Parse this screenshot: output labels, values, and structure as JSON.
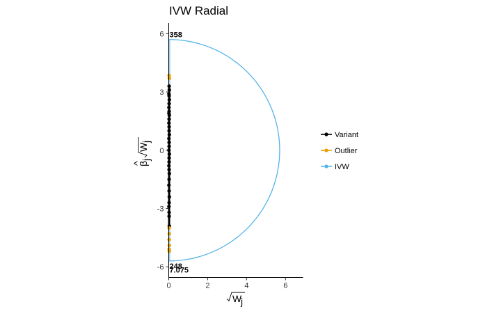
{
  "chart_data": {
    "type": "scatter",
    "title": "IVW Radial",
    "xlabel_base": "W",
    "xlabel_sub": "j",
    "ylabel_base": "β",
    "ylabel_hat": "^",
    "ylabel_sub1": "j",
    "ylabel_w": "W",
    "ylabel_sub2": "j",
    "xlim": [
      0,
      6.9
    ],
    "ylim": [
      -6.55,
      6.55
    ],
    "xticks": [
      0,
      2,
      4,
      6
    ],
    "yticks": [
      6,
      3,
      0,
      -3,
      -6
    ],
    "ivw_radius": 5.7,
    "legend": [
      {
        "name": "Variant",
        "color": "#000000"
      },
      {
        "name": "Outlier",
        "color": "#E69F00"
      },
      {
        "name": "IVW",
        "color": "#56B4E9"
      }
    ],
    "series": [
      {
        "name": "Variant",
        "color": "#000000",
        "x": [
          0.02,
          0.03,
          0.01,
          0.02,
          0.03,
          0.02,
          0.01,
          0.02,
          0.03,
          0.02,
          0.01,
          0.02,
          0.02,
          0.03,
          0.01,
          0.02,
          0.02,
          0.01,
          0.03,
          0.02,
          0.02,
          0.01,
          0.02,
          0.03,
          0.02,
          0.01,
          0.02,
          0.03,
          0.02,
          0.01,
          0.02,
          0.02,
          0.03,
          0.01
        ],
        "y": [
          3.3,
          3.1,
          2.9,
          2.8,
          2.6,
          2.4,
          2.2,
          2.0,
          1.8,
          1.6,
          1.4,
          1.2,
          1.0,
          0.8,
          0.6,
          0.4,
          0.2,
          0.0,
          -0.2,
          -0.4,
          -0.6,
          -0.8,
          -1.0,
          -1.2,
          -1.5,
          -1.8,
          -2.1,
          -2.4,
          -2.7,
          -2.9,
          -3.2,
          -3.4,
          -3.9,
          1.9
        ]
      },
      {
        "name": "Outlier",
        "color": "#E69F00",
        "x": [
          0.02,
          0.03,
          0.02,
          0.03,
          0.02,
          0.03,
          0.02,
          0.03
        ],
        "y": [
          3.85,
          3.7,
          -4.0,
          -4.3,
          -4.6,
          -4.9,
          -5.1,
          -5.2
        ]
      }
    ],
    "annotations": [
      {
        "text": "358",
        "x": 0.0,
        "y": 5.95
      },
      {
        "text": "248",
        "x": 0.0,
        "y": -5.95
      },
      {
        "text": "7.075",
        "x": 0.0,
        "y": -6.15
      }
    ]
  }
}
